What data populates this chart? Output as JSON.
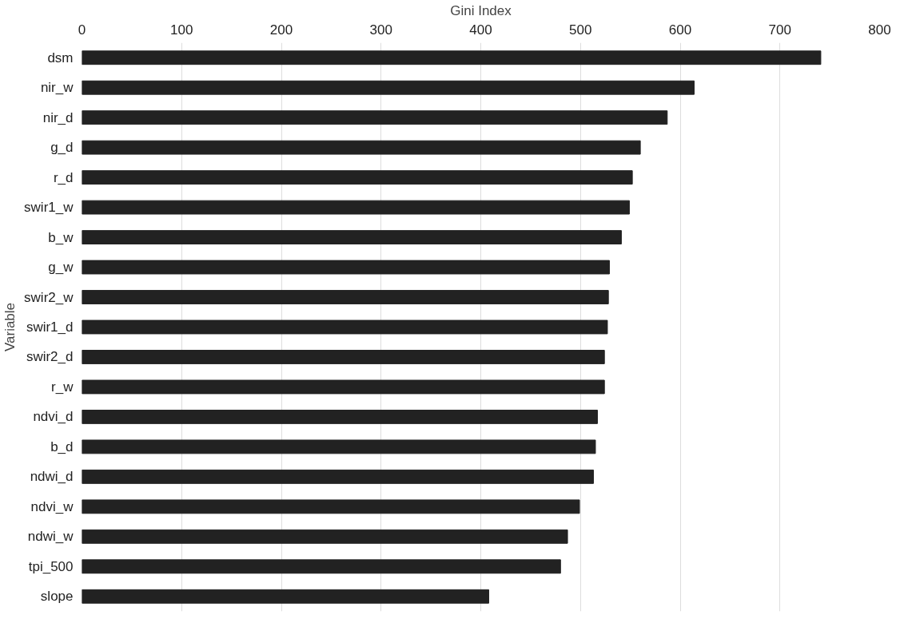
{
  "chart_data": {
    "type": "bar",
    "orientation": "horizontal",
    "xlabel": "Gini Index",
    "ylabel": "Variable",
    "categories": [
      "dsm",
      "nir_w",
      "nir_d",
      "g_d",
      "r_d",
      "swir1_w",
      "b_w",
      "g_w",
      "swir2_w",
      "swir1_d",
      "swir2_d",
      "r_w",
      "ndvi_d",
      "b_d",
      "ndwi_d",
      "ndvi_w",
      "ndwi_w",
      "tpi_500",
      "slope"
    ],
    "values": [
      741,
      614,
      587,
      560,
      552,
      549,
      541,
      529,
      528,
      527,
      524,
      524,
      517,
      515,
      513,
      499,
      487,
      480,
      408
    ],
    "color": "#222222",
    "xlim": [
      0,
      800
    ],
    "xticks": [
      0,
      100,
      200,
      300,
      400,
      500,
      600,
      700,
      800
    ],
    "grid": "x"
  }
}
